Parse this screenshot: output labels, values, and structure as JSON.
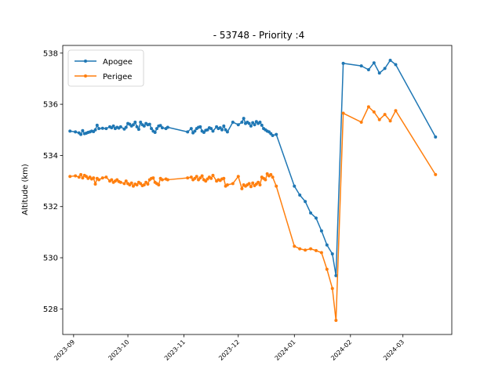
{
  "chart_data": {
    "type": "line",
    "title": "- 53748 - Priority :4",
    "xlabel": "",
    "ylabel": "Altitude (km)",
    "xlim": [
      "2023-08-26",
      "2024-03-28"
    ],
    "ylim": [
      527.0,
      538.3
    ],
    "x_ticks": [
      "2023-09",
      "2023-10",
      "2023-11",
      "2023-12",
      "2024-01",
      "2024-02",
      "2024-03"
    ],
    "y_ticks": [
      528,
      530,
      532,
      534,
      536,
      538
    ],
    "grid": false,
    "legend": "top-left",
    "series": [
      {
        "name": "Apogee",
        "color": "#1f77b4",
        "points": [
          [
            "2023-08-30",
            534.95
          ],
          [
            "2023-09-02",
            534.92
          ],
          [
            "2023-09-04",
            534.88
          ],
          [
            "2023-09-05",
            534.82
          ],
          [
            "2023-09-06",
            534.97
          ],
          [
            "2023-09-07",
            534.85
          ],
          [
            "2023-09-08",
            534.87
          ],
          [
            "2023-09-09",
            534.9
          ],
          [
            "2023-09-10",
            534.92
          ],
          [
            "2023-09-11",
            534.95
          ],
          [
            "2023-09-12",
            534.93
          ],
          [
            "2023-09-13",
            535.0
          ],
          [
            "2023-09-14",
            535.18
          ],
          [
            "2023-09-15",
            535.05
          ],
          [
            "2023-09-17",
            535.06
          ],
          [
            "2023-09-19",
            535.05
          ],
          [
            "2023-09-21",
            535.12
          ],
          [
            "2023-09-22",
            535.08
          ],
          [
            "2023-09-23",
            535.15
          ],
          [
            "2023-09-24",
            535.05
          ],
          [
            "2023-09-25",
            535.1
          ],
          [
            "2023-09-26",
            535.07
          ],
          [
            "2023-09-27",
            535.12
          ],
          [
            "2023-09-29",
            535.03
          ],
          [
            "2023-09-30",
            535.1
          ],
          [
            "2023-10-01",
            535.25
          ],
          [
            "2023-10-02",
            535.22
          ],
          [
            "2023-10-03",
            535.15
          ],
          [
            "2023-10-04",
            535.2
          ],
          [
            "2023-10-05",
            535.3
          ],
          [
            "2023-10-06",
            535.12
          ],
          [
            "2023-10-07",
            535.02
          ],
          [
            "2023-10-08",
            535.3
          ],
          [
            "2023-10-09",
            535.2
          ],
          [
            "2023-10-10",
            535.15
          ],
          [
            "2023-10-11",
            535.25
          ],
          [
            "2023-10-12",
            535.2
          ],
          [
            "2023-10-13",
            535.22
          ],
          [
            "2023-10-14",
            535.05
          ],
          [
            "2023-10-15",
            534.95
          ],
          [
            "2023-10-16",
            534.9
          ],
          [
            "2023-10-17",
            535.05
          ],
          [
            "2023-10-18",
            535.15
          ],
          [
            "2023-10-19",
            535.17
          ],
          [
            "2023-10-20",
            535.08
          ],
          [
            "2023-10-22",
            535.05
          ],
          [
            "2023-10-23",
            535.1
          ],
          [
            "2023-11-03",
            534.92
          ],
          [
            "2023-11-05",
            535.05
          ],
          [
            "2023-11-06",
            534.88
          ],
          [
            "2023-11-07",
            534.95
          ],
          [
            "2023-11-08",
            535.05
          ],
          [
            "2023-11-09",
            535.1
          ],
          [
            "2023-11-10",
            535.12
          ],
          [
            "2023-11-11",
            534.95
          ],
          [
            "2023-11-12",
            534.9
          ],
          [
            "2023-11-13",
            534.98
          ],
          [
            "2023-11-14",
            535.0
          ],
          [
            "2023-11-15",
            535.08
          ],
          [
            "2023-11-16",
            535.05
          ],
          [
            "2023-11-17",
            534.95
          ],
          [
            "2023-11-19",
            535.12
          ],
          [
            "2023-11-20",
            535.05
          ],
          [
            "2023-11-21",
            535.08
          ],
          [
            "2023-11-22",
            535.0
          ],
          [
            "2023-11-23",
            535.15
          ],
          [
            "2023-11-24",
            535.0
          ],
          [
            "2023-11-25",
            534.92
          ],
          [
            "2023-11-28",
            535.3
          ],
          [
            "2023-12-01",
            535.2
          ],
          [
            "2023-12-03",
            535.3
          ],
          [
            "2023-12-04",
            535.45
          ],
          [
            "2023-12-05",
            535.25
          ],
          [
            "2023-12-06",
            535.3
          ],
          [
            "2023-12-07",
            535.25
          ],
          [
            "2023-12-08",
            535.15
          ],
          [
            "2023-12-09",
            535.28
          ],
          [
            "2023-12-10",
            535.2
          ],
          [
            "2023-12-11",
            535.32
          ],
          [
            "2023-12-12",
            535.25
          ],
          [
            "2023-12-13",
            535.3
          ],
          [
            "2023-12-14",
            535.18
          ],
          [
            "2023-12-15",
            535.05
          ],
          [
            "2023-12-16",
            535.0
          ],
          [
            "2023-12-17",
            534.95
          ],
          [
            "2023-12-18",
            534.92
          ],
          [
            "2023-12-19",
            534.85
          ],
          [
            "2023-12-20",
            534.78
          ],
          [
            "2023-12-22",
            534.82
          ],
          [
            "2024-01-01",
            532.8
          ],
          [
            "2024-01-04",
            532.45
          ],
          [
            "2024-01-07",
            532.2
          ],
          [
            "2024-01-10",
            531.75
          ],
          [
            "2024-01-13",
            531.55
          ],
          [
            "2024-01-16",
            531.05
          ],
          [
            "2024-01-19",
            530.5
          ],
          [
            "2024-01-22",
            530.15
          ],
          [
            "2024-01-24",
            529.3
          ],
          [
            "2024-01-28",
            537.6
          ],
          [
            "2024-02-07",
            537.5
          ],
          [
            "2024-02-11",
            537.35
          ],
          [
            "2024-02-14",
            537.62
          ],
          [
            "2024-02-17",
            537.22
          ],
          [
            "2024-02-20",
            537.4
          ],
          [
            "2024-02-23",
            537.72
          ],
          [
            "2024-02-26",
            537.55
          ],
          [
            "2024-03-19",
            534.72
          ]
        ]
      },
      {
        "name": "Perigee",
        "color": "#ff7f0e",
        "points": [
          [
            "2023-08-30",
            533.18
          ],
          [
            "2023-09-02",
            533.2
          ],
          [
            "2023-09-04",
            533.15
          ],
          [
            "2023-09-05",
            533.25
          ],
          [
            "2023-09-06",
            533.12
          ],
          [
            "2023-09-07",
            533.22
          ],
          [
            "2023-09-08",
            533.18
          ],
          [
            "2023-09-09",
            533.1
          ],
          [
            "2023-09-10",
            533.15
          ],
          [
            "2023-09-11",
            533.08
          ],
          [
            "2023-09-12",
            533.12
          ],
          [
            "2023-09-13",
            532.88
          ],
          [
            "2023-09-14",
            533.1
          ],
          [
            "2023-09-15",
            533.05
          ],
          [
            "2023-09-17",
            533.12
          ],
          [
            "2023-09-19",
            533.15
          ],
          [
            "2023-09-21",
            533.0
          ],
          [
            "2023-09-22",
            533.05
          ],
          [
            "2023-09-23",
            532.95
          ],
          [
            "2023-09-24",
            533.0
          ],
          [
            "2023-09-25",
            533.05
          ],
          [
            "2023-09-26",
            532.98
          ],
          [
            "2023-09-27",
            532.95
          ],
          [
            "2023-09-29",
            532.9
          ],
          [
            "2023-09-30",
            533.0
          ],
          [
            "2023-10-01",
            532.9
          ],
          [
            "2023-10-02",
            532.85
          ],
          [
            "2023-10-03",
            532.92
          ],
          [
            "2023-10-04",
            532.8
          ],
          [
            "2023-10-05",
            532.88
          ],
          [
            "2023-10-06",
            532.85
          ],
          [
            "2023-10-07",
            532.95
          ],
          [
            "2023-10-08",
            532.9
          ],
          [
            "2023-10-09",
            532.82
          ],
          [
            "2023-10-10",
            532.85
          ],
          [
            "2023-10-11",
            532.95
          ],
          [
            "2023-10-12",
            532.88
          ],
          [
            "2023-10-13",
            533.05
          ],
          [
            "2023-10-14",
            533.1
          ],
          [
            "2023-10-15",
            533.12
          ],
          [
            "2023-10-16",
            532.95
          ],
          [
            "2023-10-17",
            532.9
          ],
          [
            "2023-10-18",
            532.85
          ],
          [
            "2023-10-19",
            533.1
          ],
          [
            "2023-10-20",
            533.05
          ],
          [
            "2023-10-22",
            533.08
          ],
          [
            "2023-10-23",
            533.05
          ],
          [
            "2023-11-03",
            533.12
          ],
          [
            "2023-11-05",
            533.15
          ],
          [
            "2023-11-06",
            533.05
          ],
          [
            "2023-11-07",
            533.1
          ],
          [
            "2023-11-08",
            533.18
          ],
          [
            "2023-11-09",
            533.05
          ],
          [
            "2023-11-10",
            533.12
          ],
          [
            "2023-11-11",
            533.2
          ],
          [
            "2023-11-12",
            533.05
          ],
          [
            "2023-11-13",
            533.0
          ],
          [
            "2023-11-14",
            533.08
          ],
          [
            "2023-11-15",
            533.15
          ],
          [
            "2023-11-16",
            533.1
          ],
          [
            "2023-11-17",
            533.22
          ],
          [
            "2023-11-19",
            533.0
          ],
          [
            "2023-11-20",
            533.05
          ],
          [
            "2023-11-21",
            533.02
          ],
          [
            "2023-11-22",
            533.08
          ],
          [
            "2023-11-23",
            533.1
          ],
          [
            "2023-11-24",
            532.8
          ],
          [
            "2023-11-25",
            532.85
          ],
          [
            "2023-11-28",
            532.9
          ],
          [
            "2023-12-01",
            533.18
          ],
          [
            "2023-12-03",
            532.7
          ],
          [
            "2023-12-04",
            532.85
          ],
          [
            "2023-12-05",
            532.8
          ],
          [
            "2023-12-06",
            532.85
          ],
          [
            "2023-12-07",
            532.9
          ],
          [
            "2023-12-08",
            532.78
          ],
          [
            "2023-12-09",
            532.92
          ],
          [
            "2023-12-10",
            532.82
          ],
          [
            "2023-12-11",
            532.88
          ],
          [
            "2023-12-12",
            532.95
          ],
          [
            "2023-12-13",
            532.85
          ],
          [
            "2023-12-14",
            533.15
          ],
          [
            "2023-12-15",
            533.1
          ],
          [
            "2023-12-16",
            533.05
          ],
          [
            "2023-12-17",
            533.28
          ],
          [
            "2023-12-18",
            533.2
          ],
          [
            "2023-12-19",
            533.25
          ],
          [
            "2023-12-20",
            533.15
          ],
          [
            "2023-12-22",
            532.8
          ],
          [
            "2024-01-01",
            530.45
          ],
          [
            "2024-01-04",
            530.35
          ],
          [
            "2024-01-07",
            530.3
          ],
          [
            "2024-01-10",
            530.35
          ],
          [
            "2024-01-13",
            530.28
          ],
          [
            "2024-01-16",
            530.2
          ],
          [
            "2024-01-19",
            529.55
          ],
          [
            "2024-01-22",
            528.8
          ],
          [
            "2024-01-24",
            527.55
          ],
          [
            "2024-01-28",
            535.65
          ],
          [
            "2024-02-07",
            535.3
          ],
          [
            "2024-02-11",
            535.9
          ],
          [
            "2024-02-14",
            535.7
          ],
          [
            "2024-02-17",
            535.4
          ],
          [
            "2024-02-20",
            535.6
          ],
          [
            "2024-02-23",
            535.35
          ],
          [
            "2024-02-26",
            535.75
          ],
          [
            "2024-03-19",
            533.25
          ]
        ]
      }
    ]
  }
}
